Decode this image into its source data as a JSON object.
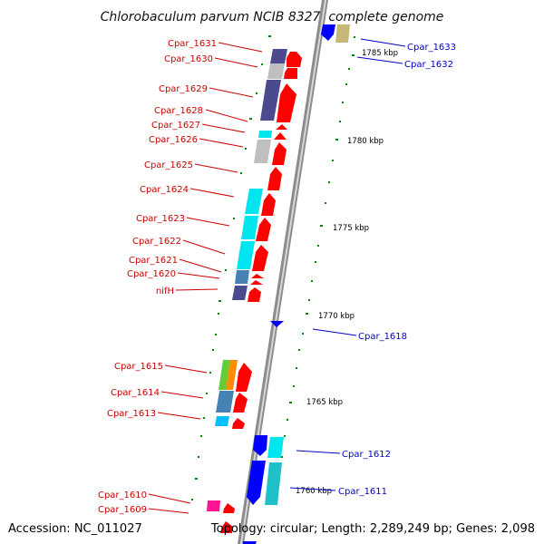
{
  "title": "Chlorobaculum parvum NCIB 8327, complete genome",
  "footer": {
    "accession": "Accession: NC_011027",
    "info": "Topology: circular; Length: 2,289,249 bp; Genes: 2,098"
  },
  "colors": {
    "forward_strand_label": "#cc0000",
    "reverse_strand_label": "#0000cc",
    "forward_arrow": "#ff0000",
    "reverse_arrow": "#0000ff",
    "backbone": "#888888",
    "tick": "#008800"
  },
  "kbp_markers": [
    {
      "label": "1785 kbp"
    },
    {
      "label": "1780 kbp"
    },
    {
      "label": "1775 kbp"
    },
    {
      "label": "1770 kbp"
    },
    {
      "label": "1765 kbp"
    },
    {
      "label": "1760 kbp"
    }
  ],
  "left_genes": [
    {
      "name": "Cpar_1631",
      "cog_color": "#4a4a8c"
    },
    {
      "name": "Cpar_1630",
      "cog_color": "#bfbfbf"
    },
    {
      "name": "Cpar_1629",
      "cog_color": "#4a4a8c"
    },
    {
      "name": "Cpar_1628",
      "cog_color": ""
    },
    {
      "name": "Cpar_1627",
      "cog_color": "#00e5ee"
    },
    {
      "name": "Cpar_1626",
      "cog_color": "#bfbfbf"
    },
    {
      "name": "Cpar_1625",
      "cog_color": ""
    },
    {
      "name": "Cpar_1624",
      "cog_color": "#00e5ee"
    },
    {
      "name": "Cpar_1623",
      "cog_color": "#00e5ee"
    },
    {
      "name": "Cpar_1622",
      "cog_color": "#00e5ee"
    },
    {
      "name": "Cpar_1621",
      "cog_color": "#4682b4"
    },
    {
      "name": "Cpar_1620",
      "cog_color": ""
    },
    {
      "name": "nifH",
      "cog_color": "#4a4a8c"
    },
    {
      "name": "Cpar_1615",
      "cog_color": "#66cc33"
    },
    {
      "name": "Cpar_1614",
      "cog_color": "#4682b4"
    },
    {
      "name": "Cpar_1613",
      "cog_color": "#00bfff"
    },
    {
      "name": "Cpar_1610",
      "cog_color": "#ff1493"
    },
    {
      "name": "Cpar_1609",
      "cog_color": ""
    }
  ],
  "right_genes": [
    {
      "name": "Cpar_1633",
      "cog_color": "#c8b878"
    },
    {
      "name": "Cpar_1632",
      "cog_color": ""
    },
    {
      "name": "Cpar_1618",
      "cog_color": ""
    },
    {
      "name": "Cpar_1612",
      "cog_color": "#00e5ee"
    },
    {
      "name": "Cpar_1611",
      "cog_color": "#20c0c8"
    }
  ]
}
